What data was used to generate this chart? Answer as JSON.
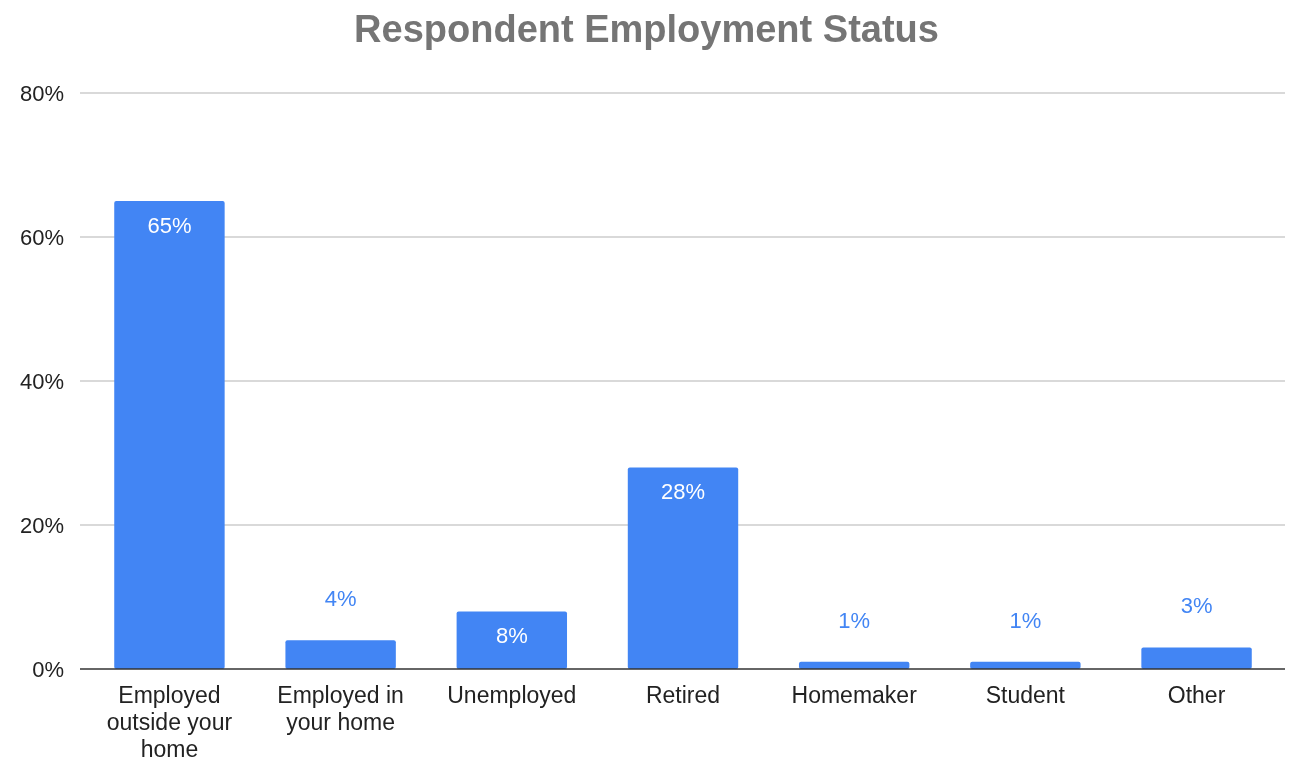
{
  "chart_data": {
    "type": "bar",
    "title": "Respondent Employment Status",
    "categories": [
      "Employed outside your home",
      "Employed in your home",
      "Unemployed",
      "Retired",
      "Homemaker",
      "Student",
      "Other"
    ],
    "values": [
      65,
      4,
      8,
      28,
      1,
      1,
      3
    ],
    "value_labels": [
      "65%",
      "4%",
      "8%",
      "28%",
      "1%",
      "1%",
      "3%"
    ],
    "color": "#4285f4",
    "ylim": [
      0,
      80
    ],
    "yticks": [
      {
        "value": 0,
        "label": "0%"
      },
      {
        "value": 20,
        "label": "20%"
      },
      {
        "value": 40,
        "label": "40%"
      },
      {
        "value": 60,
        "label": "60%"
      },
      {
        "value": 80,
        "label": "80%"
      }
    ],
    "grid": "y"
  }
}
